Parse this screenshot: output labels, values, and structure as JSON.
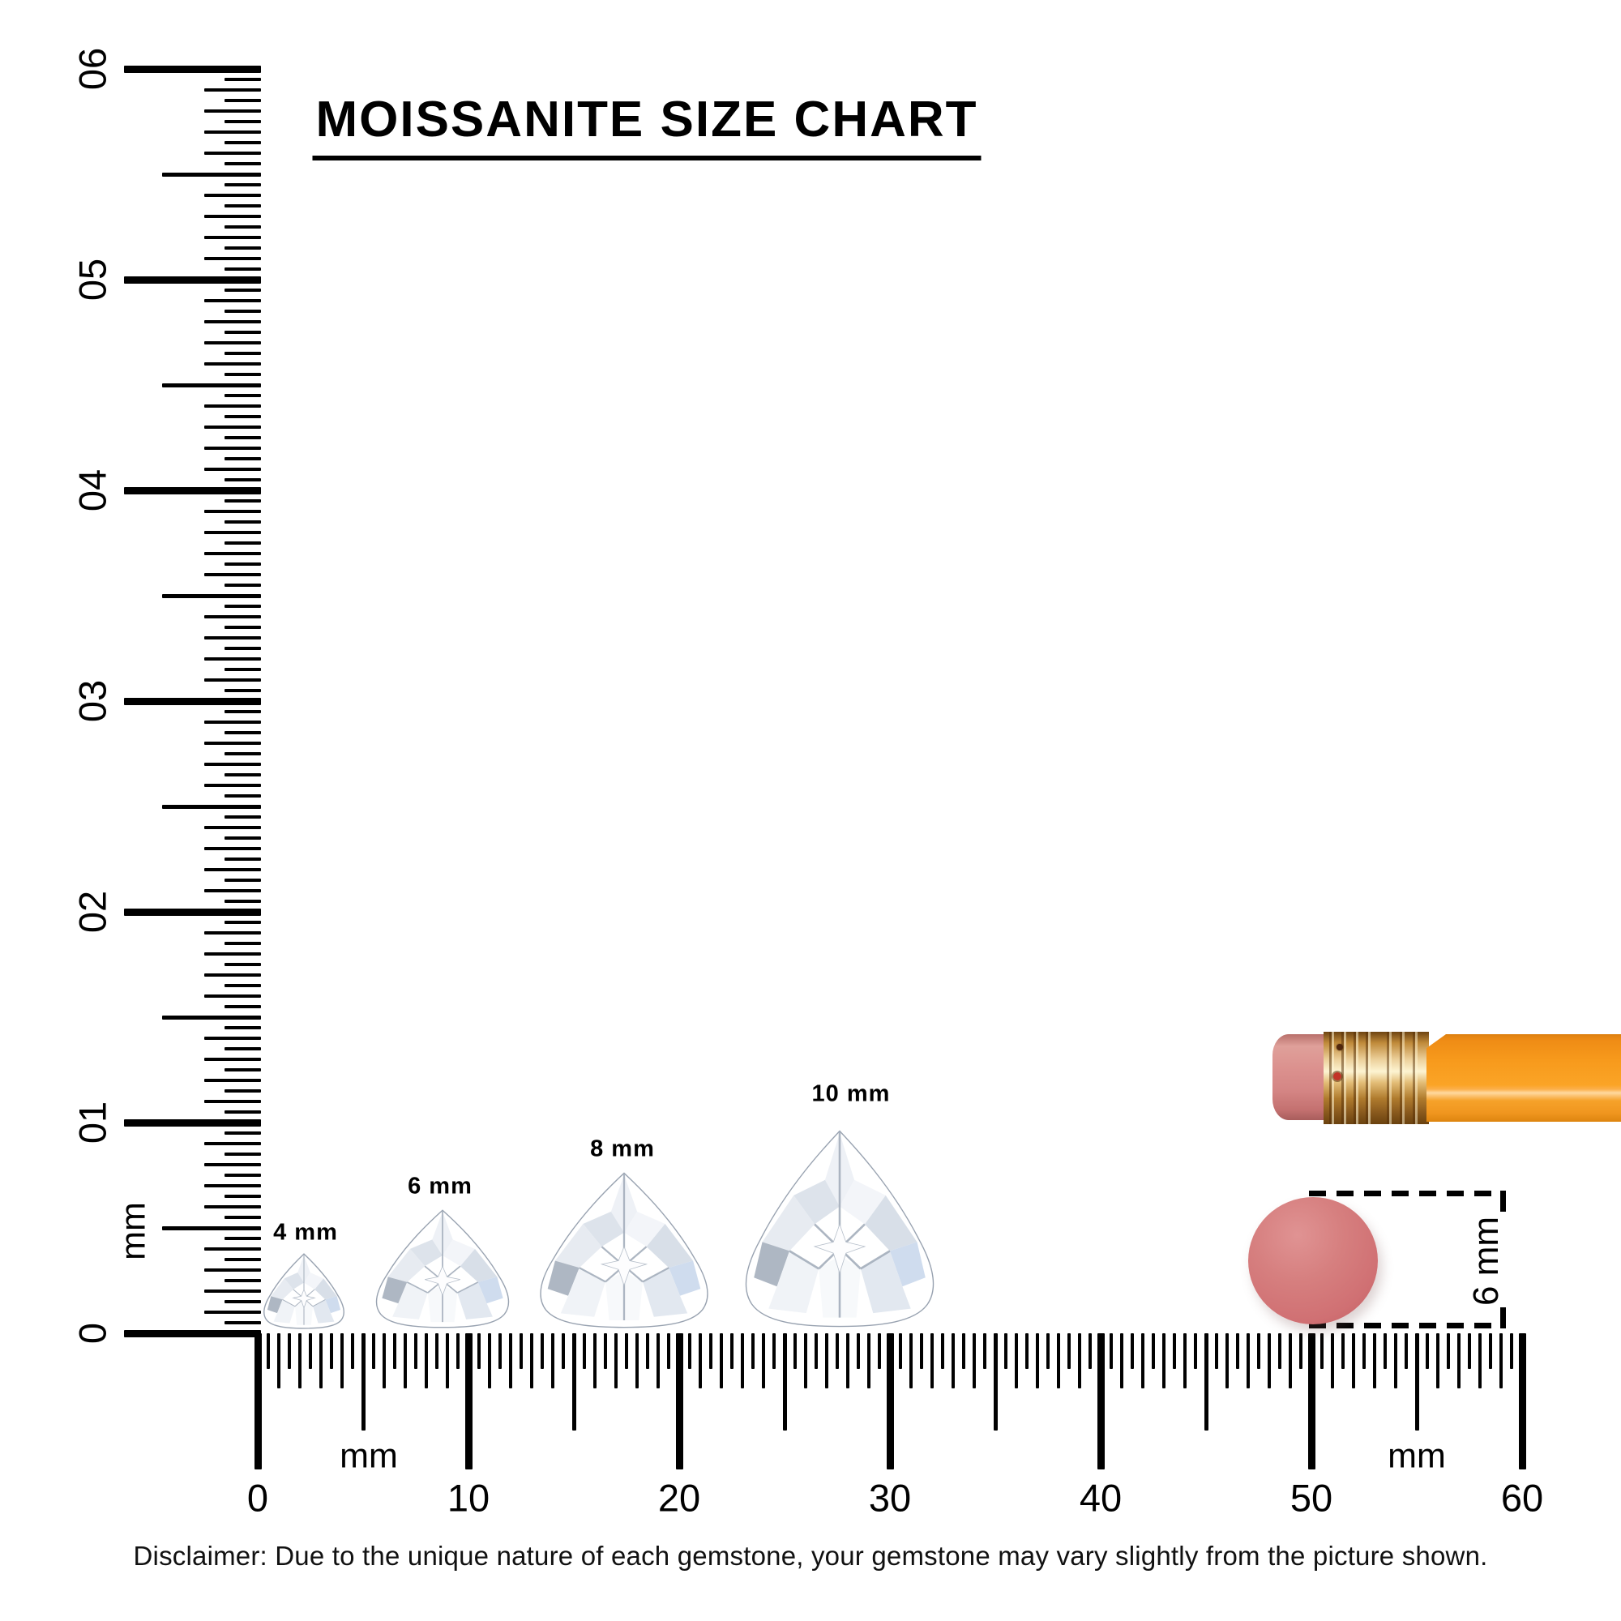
{
  "title": "MOISSANITE SIZE CHART",
  "rulers": {
    "vertical": {
      "unit": "mm",
      "min_mm": 0,
      "max_mm": 60,
      "tick_step_mm": 0.5,
      "numbers": [
        "0",
        "10",
        "20",
        "30",
        "40",
        "50",
        "60"
      ]
    },
    "horizontal": {
      "unit": "mm",
      "min_mm": 0,
      "max_mm": 60,
      "tick_step_mm": 0.5,
      "numbers": [
        "0",
        "10",
        "20",
        "30",
        "40",
        "50",
        "60"
      ]
    }
  },
  "gems": [
    {
      "label": "4 mm",
      "size_mm": 4
    },
    {
      "label": "6 mm",
      "size_mm": 6
    },
    {
      "label": "8 mm",
      "size_mm": 8
    },
    {
      "label": "10 mm",
      "size_mm": 10
    }
  ],
  "comparison_eraser": {
    "label": "6 mm",
    "color": "#d07073"
  },
  "pencil": {
    "eraser_color": "#dc928f",
    "ferrule_color": "#d9a85c",
    "body_color": "#f89c1e"
  },
  "disclaimer": "Disclaimer: Due to the unique nature of each gemstone, your gemstone may vary slightly from the picture shown."
}
